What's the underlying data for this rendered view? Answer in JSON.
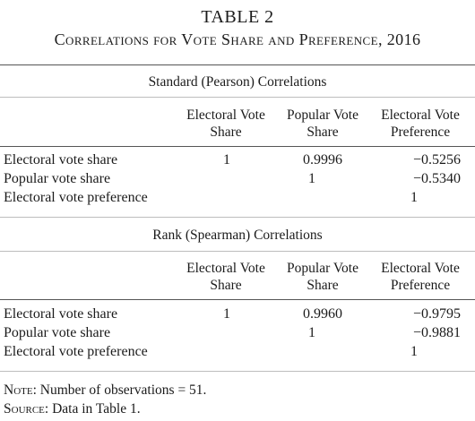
{
  "table": {
    "number": "TABLE 2",
    "caption": "Correlations for Vote Share and Preference, 2016"
  },
  "columns": [
    {
      "line1": "Electoral Vote",
      "line2": "Share"
    },
    {
      "line1": "Popular Vote",
      "line2": "Share"
    },
    {
      "line1": "Electoral Vote",
      "line2": "Preference"
    }
  ],
  "panels": [
    {
      "heading": "Standard (Pearson) Correlations",
      "rows": [
        {
          "label": "Electoral vote share",
          "c1": "1",
          "c2": "0.9996",
          "c3": "−0.5256"
        },
        {
          "label": "Popular vote share",
          "c1": "",
          "c2": "1",
          "c3": "−0.5340"
        },
        {
          "label": "Electoral vote preference",
          "c1": "",
          "c2": "",
          "c3": "1"
        }
      ]
    },
    {
      "heading": "Rank (Spearman) Correlations",
      "rows": [
        {
          "label": "Electoral vote share",
          "c1": "1",
          "c2": "0.9960",
          "c3": "−0.9795"
        },
        {
          "label": "Popular vote share",
          "c1": "",
          "c2": "1",
          "c3": "−0.9881"
        },
        {
          "label": "Electoral vote preference",
          "c1": "",
          "c2": "",
          "c3": "1"
        }
      ]
    }
  ],
  "notes": {
    "note_label": "Note:",
    "note_text": " Number of observations = 51.",
    "source_label": "Source:",
    "source_text": " Data in Table 1."
  }
}
